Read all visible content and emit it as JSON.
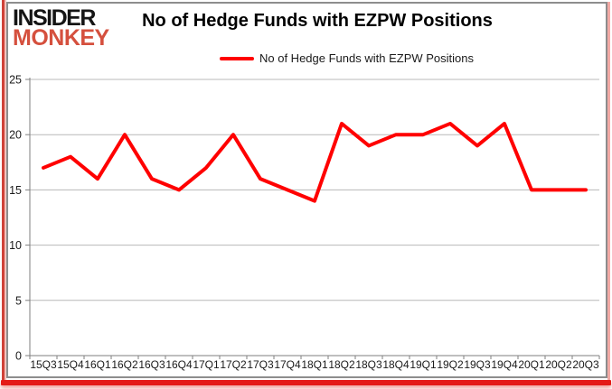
{
  "logo": {
    "line1": "INSIDER",
    "line2": "MONKEY"
  },
  "header": {
    "title": "No of Hedge Funds with EZPW Positions"
  },
  "legend": {
    "label": "No of Hedge Funds with EZPW Positions",
    "marker": "red-line"
  },
  "colors": {
    "series_red": "#ff0000",
    "grid_gray": "#b8b8b8",
    "axis_gray": "#7f7f7f",
    "text_black": "#1a1a1a",
    "logo_red": "#d5503e",
    "frame_red": "#e41b17"
  },
  "chart_data": {
    "type": "line",
    "title": "No of Hedge Funds with EZPW Positions",
    "categories": [
      "15Q3",
      "15Q4",
      "16Q1",
      "16Q2",
      "16Q3",
      "16Q4",
      "17Q1",
      "17Q2",
      "17Q3",
      "17Q4",
      "18Q1",
      "18Q2",
      "18Q3",
      "18Q4",
      "19Q1",
      "19Q2",
      "19Q3",
      "19Q4",
      "20Q1",
      "20Q2",
      "20Q3"
    ],
    "series": [
      {
        "name": "No of Hedge Funds with EZPW Positions",
        "color": "#ff0000",
        "values": [
          17,
          18,
          16,
          20,
          16,
          15,
          17,
          20,
          16,
          15,
          14,
          21,
          19,
          20,
          20,
          21,
          19,
          21,
          15,
          15,
          15
        ]
      }
    ],
    "xlabel": "",
    "ylabel": "",
    "ylim": [
      0,
      25
    ],
    "yticks": [
      0,
      5,
      10,
      15,
      20,
      25
    ],
    "grid": true,
    "legend_position": "top"
  }
}
